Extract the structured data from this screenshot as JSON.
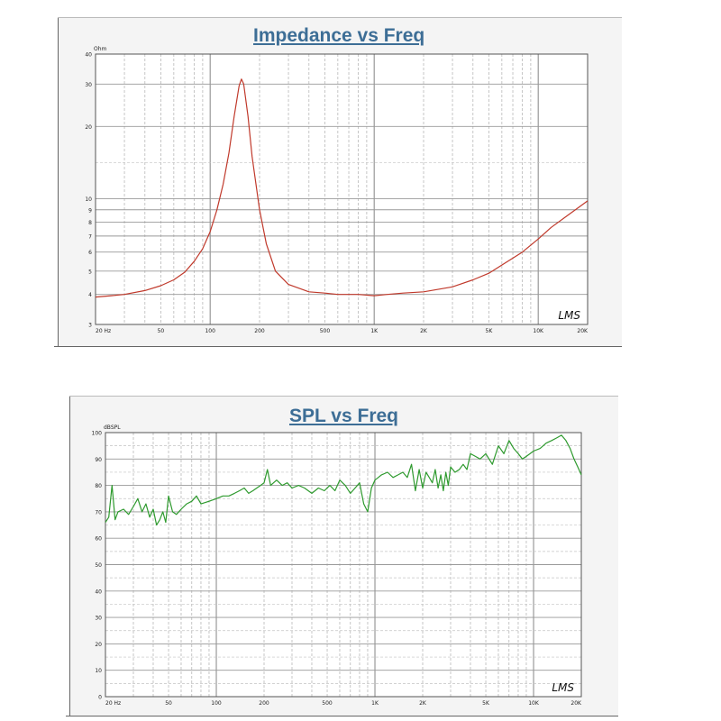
{
  "chart_data": [
    {
      "type": "line",
      "title": "Impedance vs Freq",
      "ylabel": "Ohm",
      "xscale": "log",
      "yscale": "log",
      "xlim": [
        20,
        20000
      ],
      "ylim": [
        3,
        40
      ],
      "grid": true,
      "xticks": [
        {
          "v": 20,
          "label": "20 Hz"
        },
        {
          "v": 50,
          "label": "50"
        },
        {
          "v": 100,
          "label": "100"
        },
        {
          "v": 200,
          "label": "200"
        },
        {
          "v": 500,
          "label": "500"
        },
        {
          "v": 1000,
          "label": "1K"
        },
        {
          "v": 2000,
          "label": "2K"
        },
        {
          "v": 5000,
          "label": "5K"
        },
        {
          "v": 10000,
          "label": "10K"
        },
        {
          "v": 20000,
          "label": "20K"
        }
      ],
      "yticks": [
        {
          "v": 3,
          "label": "3"
        },
        {
          "v": 4,
          "label": "4"
        },
        {
          "v": 5,
          "label": "5"
        },
        {
          "v": 6,
          "label": "6"
        },
        {
          "v": 7,
          "label": "7"
        },
        {
          "v": 8,
          "label": "8"
        },
        {
          "v": 9,
          "label": "9"
        },
        {
          "v": 10,
          "label": "10"
        },
        {
          "v": 20,
          "label": "20"
        },
        {
          "v": 30,
          "label": "30"
        },
        {
          "v": 40,
          "label": "40"
        }
      ],
      "watermark": "LMS",
      "color": "#c0392b",
      "series": [
        {
          "x": [
            20,
            25,
            30,
            40,
            50,
            60,
            70,
            80,
            90,
            100,
            110,
            120,
            130,
            140,
            150,
            155,
            160,
            170,
            180,
            200,
            220,
            250,
            300,
            400,
            500,
            600,
            800,
            1000,
            1200,
            1500,
            2000,
            3000,
            4000,
            5000,
            6000,
            8000,
            10000,
            12000,
            15000,
            20000
          ],
          "y": [
            3.9,
            3.95,
            4.0,
            4.15,
            4.35,
            4.6,
            4.95,
            5.5,
            6.2,
            7.3,
            9.0,
            11.5,
            15.5,
            22.0,
            29.5,
            31.5,
            30.0,
            22.0,
            15.0,
            9.0,
            6.5,
            5.0,
            4.4,
            4.1,
            4.05,
            4.0,
            4.0,
            3.95,
            4.0,
            4.05,
            4.1,
            4.3,
            4.6,
            4.9,
            5.3,
            6.0,
            6.8,
            7.6,
            8.5,
            9.8
          ]
        }
      ]
    },
    {
      "type": "line",
      "title": "SPL vs Freq",
      "ylabel": "dBSPL",
      "xscale": "log",
      "xlim": [
        20,
        20000
      ],
      "ylim": [
        0,
        100
      ],
      "grid": true,
      "xticks": [
        {
          "v": 20,
          "label": "20 Hz"
        },
        {
          "v": 50,
          "label": "50"
        },
        {
          "v": 100,
          "label": "100"
        },
        {
          "v": 200,
          "label": "200"
        },
        {
          "v": 500,
          "label": "500"
        },
        {
          "v": 1000,
          "label": "1K"
        },
        {
          "v": 2000,
          "label": "2K"
        },
        {
          "v": 5000,
          "label": "5K"
        },
        {
          "v": 10000,
          "label": "10K"
        },
        {
          "v": 20000,
          "label": "20K"
        }
      ],
      "yticks": [
        {
          "v": 0,
          "label": "0"
        },
        {
          "v": 10,
          "label": "10"
        },
        {
          "v": 20,
          "label": "20"
        },
        {
          "v": 30,
          "label": "30"
        },
        {
          "v": 40,
          "label": "40"
        },
        {
          "v": 50,
          "label": "50"
        },
        {
          "v": 60,
          "label": "60"
        },
        {
          "v": 70,
          "label": "70"
        },
        {
          "v": 80,
          "label": "80"
        },
        {
          "v": 90,
          "label": "90"
        },
        {
          "v": 100,
          "label": "100"
        }
      ],
      "watermark": "LMS",
      "color": "#2e9a2e",
      "series": [
        {
          "x": [
            20,
            21,
            22,
            23,
            24,
            26,
            28,
            30,
            32,
            34,
            36,
            38,
            40,
            42,
            44,
            46,
            48,
            50,
            53,
            56,
            60,
            65,
            70,
            75,
            80,
            90,
            100,
            110,
            120,
            130,
            140,
            150,
            160,
            170,
            180,
            190,
            200,
            210,
            220,
            240,
            260,
            280,
            300,
            330,
            360,
            400,
            440,
            480,
            520,
            560,
            600,
            650,
            700,
            750,
            800,
            850,
            900,
            950,
            1000,
            1050,
            1100,
            1200,
            1300,
            1400,
            1500,
            1600,
            1700,
            1800,
            1900,
            2000,
            2100,
            2200,
            2300,
            2400,
            2500,
            2600,
            2700,
            2800,
            2900,
            3000,
            3200,
            3400,
            3600,
            3800,
            4000,
            4300,
            4600,
            5000,
            5500,
            6000,
            6500,
            7000,
            7500,
            8000,
            8500,
            9000,
            10000,
            11000,
            12000,
            13000,
            14000,
            15000,
            16000,
            17000,
            18000,
            19000,
            20000
          ],
          "y": [
            66,
            68,
            80,
            67,
            70,
            71,
            69,
            72,
            75,
            70,
            73,
            68,
            71,
            65,
            67,
            70,
            66,
            76,
            70,
            69,
            71,
            73,
            74,
            76,
            73,
            74,
            75,
            76,
            76,
            77,
            78,
            79,
            77,
            78,
            79,
            80,
            81,
            86,
            80,
            82,
            80,
            81,
            79,
            80,
            79,
            77,
            79,
            78,
            80,
            78,
            82,
            80,
            77,
            79,
            81,
            73,
            70,
            79,
            82,
            83,
            84,
            85,
            83,
            84,
            85,
            83,
            88,
            78,
            86,
            79,
            85,
            83,
            81,
            86,
            79,
            84,
            78,
            85,
            80,
            87,
            85,
            86,
            88,
            86,
            92,
            91,
            90,
            92,
            88,
            95,
            92,
            97,
            94,
            92,
            90,
            91,
            93,
            94,
            96,
            97,
            98,
            99,
            97,
            94,
            90,
            87,
            84
          ]
        }
      ]
    }
  ]
}
